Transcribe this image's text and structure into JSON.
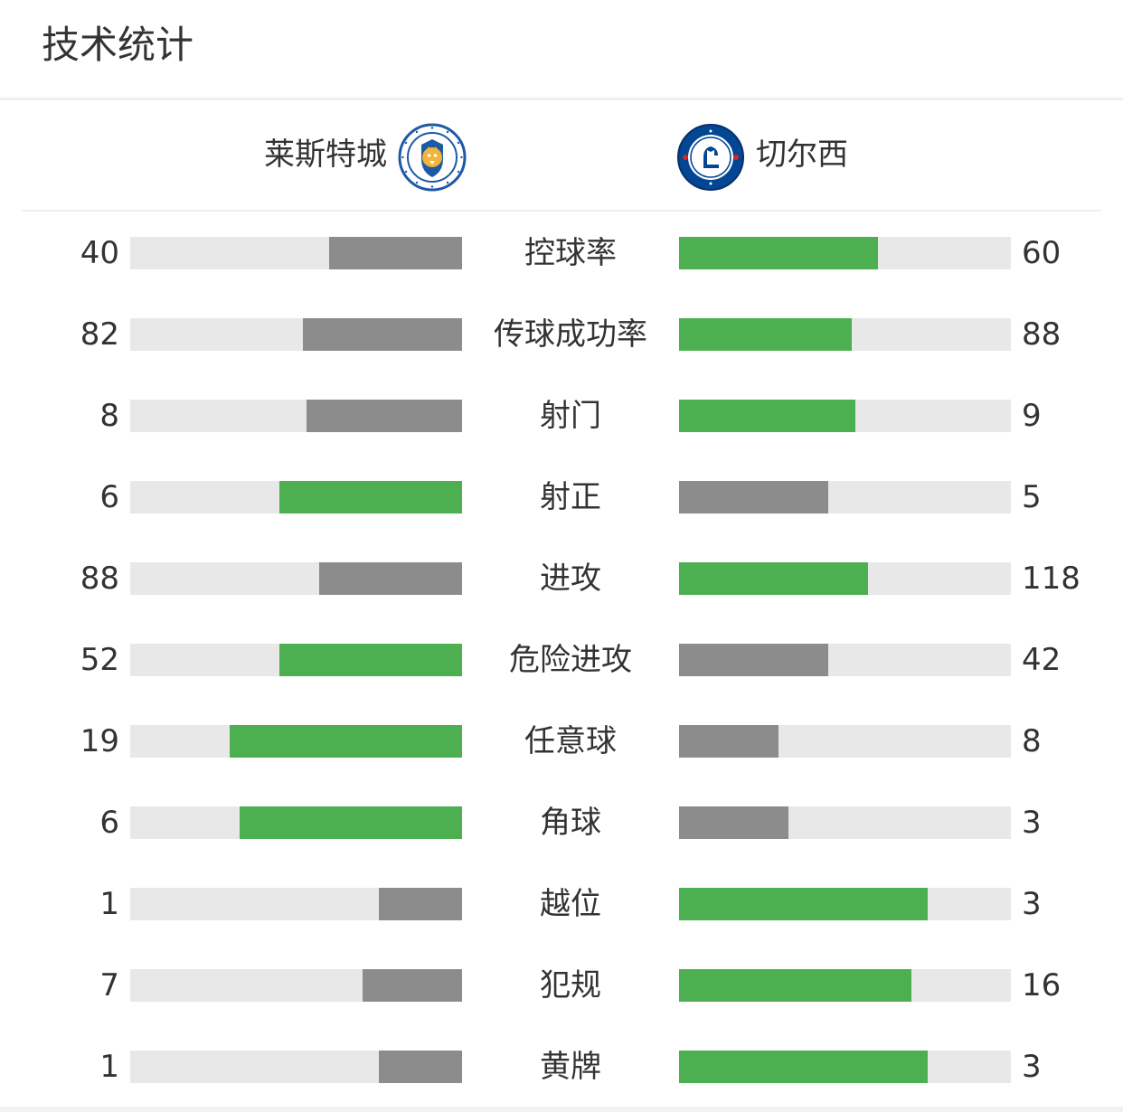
{
  "header": {
    "title": "技术统计"
  },
  "teams": {
    "home": {
      "name": "莱斯特城",
      "logo_icon": "leicester-city-crest",
      "logo_text": "LEICESTER CITY FOOTBALL CLUB"
    },
    "away": {
      "name": "切尔西",
      "logo_icon": "chelsea-crest",
      "logo_text": "CHELSEA FOOTBALL CLUB"
    }
  },
  "colors": {
    "leader": "#4caf50",
    "trailer": "#8c8c8c",
    "track": "#e8e8e8"
  },
  "stats": [
    {
      "label": "控球率",
      "home": "40",
      "away": "60",
      "home_share": 0.4,
      "away_share": 0.6
    },
    {
      "label": "传球成功率",
      "home": "82",
      "away": "88",
      "home_share": 0.48,
      "away_share": 0.52
    },
    {
      "label": "射门",
      "home": "8",
      "away": "9",
      "home_share": 0.47,
      "away_share": 0.53
    },
    {
      "label": "射正",
      "home": "6",
      "away": "5",
      "home_share": 0.55,
      "away_share": 0.45
    },
    {
      "label": "进攻",
      "home": "88",
      "away": "118",
      "home_share": 0.43,
      "away_share": 0.57
    },
    {
      "label": "危险进攻",
      "home": "52",
      "away": "42",
      "home_share": 0.55,
      "away_share": 0.45
    },
    {
      "label": "任意球",
      "home": "19",
      "away": "8",
      "home_share": 0.7,
      "away_share": 0.3
    },
    {
      "label": "角球",
      "home": "6",
      "away": "3",
      "home_share": 0.67,
      "away_share": 0.33
    },
    {
      "label": "越位",
      "home": "1",
      "away": "3",
      "home_share": 0.25,
      "away_share": 0.75
    },
    {
      "label": "犯规",
      "home": "7",
      "away": "16",
      "home_share": 0.3,
      "away_share": 0.7
    },
    {
      "label": "黄牌",
      "home": "1",
      "away": "3",
      "home_share": 0.25,
      "away_share": 0.75
    }
  ]
}
